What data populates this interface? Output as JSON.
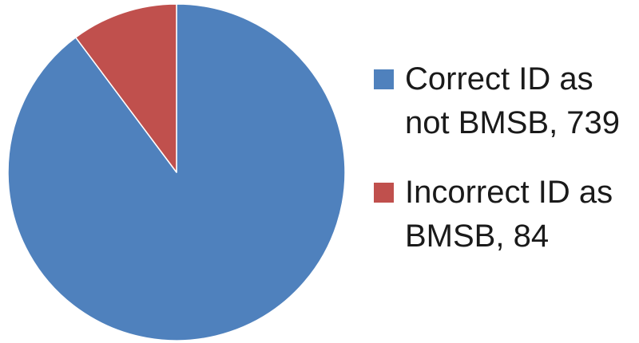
{
  "chart_data": {
    "type": "pie",
    "categories": [
      "Correct ID as not BMSB",
      "Incorrect ID as BMSB"
    ],
    "values": [
      739,
      84
    ],
    "colors": [
      "#4f81bd",
      "#c0504d"
    ],
    "legend_position": "right",
    "legend": [
      {
        "label": "Correct ID as not BMSB, 739",
        "color": "#4f81bd"
      },
      {
        "label": "Incorrect ID as BMSB, 84",
        "color": "#c0504d"
      }
    ]
  }
}
